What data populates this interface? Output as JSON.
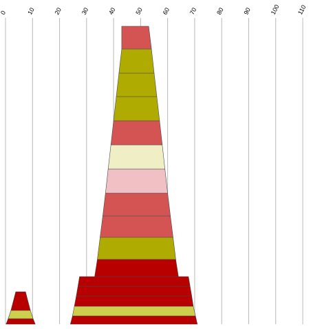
{
  "chart_data": {
    "type": "stacked-trapezoid",
    "x_ticks": [
      "0",
      "10",
      "20",
      "30",
      "40",
      "50",
      "60",
      "70",
      "80",
      "90",
      "100",
      "110"
    ],
    "xlim": [
      0,
      110
    ],
    "grid": true,
    "shapes": [
      {
        "segments": [
          {
            "left_bottom": 0.2,
            "right_bottom": 11.0,
            "left_top": 1.0,
            "right_top": 10.2,
            "color": "#b80000"
          },
          {
            "left_bottom": 1.0,
            "right_bottom": 10.2,
            "left_top": 2.0,
            "right_top": 9.2,
            "color": "#cfcf4e"
          },
          {
            "left_bottom": 2.0,
            "right_bottom": 9.2,
            "left_top": 3.8,
            "right_top": 7.4,
            "color": "#b80000"
          }
        ]
      },
      {
        "segments": [
          {
            "left_bottom": 24.0,
            "right_bottom": 71.0,
            "left_top": 24.8,
            "right_top": 70.3,
            "color": "#b80000"
          },
          {
            "left_bottom": 24.8,
            "right_bottom": 70.3,
            "left_top": 25.5,
            "right_top": 69.5,
            "color": "#cfcf4e"
          },
          {
            "left_bottom": 25.5,
            "right_bottom": 69.5,
            "left_top": 26.2,
            "right_top": 68.9,
            "color": "#b80000"
          },
          {
            "left_bottom": 26.2,
            "right_bottom": 68.9,
            "left_top": 26.8,
            "right_top": 68.3,
            "color": "#b80000"
          },
          {
            "left_bottom": 26.8,
            "right_bottom": 68.3,
            "left_top": 27.4,
            "right_top": 67.7,
            "color": "#b80000"
          },
          {
            "left_bottom": 27.4,
            "right_bottom": 67.7,
            "left_top": 28.0,
            "right_top": 67.0,
            "color": "#b80000"
          },
          {
            "left_bottom": 33.0,
            "right_bottom": 64.0,
            "left_top": 34.0,
            "right_top": 63.0,
            "color": "#b80000"
          },
          {
            "left_bottom": 34.0,
            "right_bottom": 63.0,
            "left_top": 35.0,
            "right_top": 62.0,
            "color": "#b0ab00"
          },
          {
            "left_bottom": 35.0,
            "right_bottom": 62.0,
            "left_top": 36.0,
            "right_top": 61.0,
            "color": "#d45454"
          },
          {
            "left_bottom": 36.0,
            "right_bottom": 61.0,
            "left_top": 37.0,
            "right_top": 60.0,
            "color": "#d45454"
          },
          {
            "left_bottom": 37.0,
            "right_bottom": 60.0,
            "left_top": 38.0,
            "right_top": 59.0,
            "color": "#f0c0c4"
          },
          {
            "left_bottom": 38.0,
            "right_bottom": 59.0,
            "left_top": 39.0,
            "right_top": 58.0,
            "color": "#f0eec4"
          },
          {
            "left_bottom": 39.0,
            "right_bottom": 58.0,
            "left_top": 40.0,
            "right_top": 57.0,
            "color": "#d45454"
          },
          {
            "left_bottom": 40.0,
            "right_bottom": 57.0,
            "left_top": 41.0,
            "right_top": 56.0,
            "color": "#b0ab00"
          },
          {
            "left_bottom": 41.0,
            "right_bottom": 56.0,
            "left_top": 42.0,
            "right_top": 55.0,
            "color": "#b0ab00"
          },
          {
            "left_bottom": 42.0,
            "right_bottom": 55.0,
            "left_top": 43.0,
            "right_top": 54.0,
            "color": "#b0ab00"
          },
          {
            "left_bottom": 43.0,
            "right_bottom": 54.0,
            "left_top": 43.0,
            "right_top": 53.0,
            "color": "#d45454"
          }
        ]
      }
    ]
  }
}
